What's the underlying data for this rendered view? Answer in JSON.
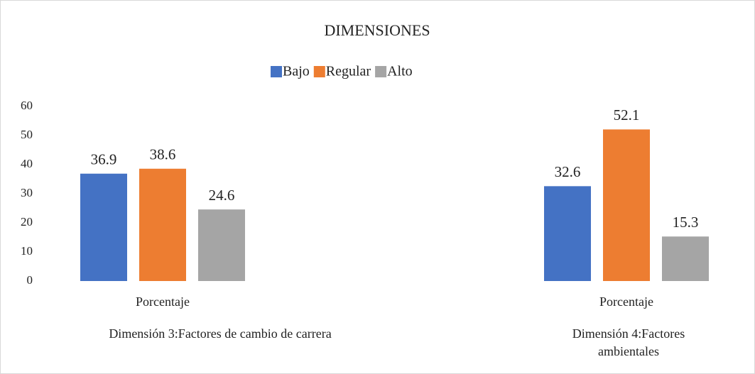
{
  "chart_data": {
    "type": "bar",
    "title": "DIMENSIONES",
    "categories": [
      "Porcentaje",
      "Porcentaje"
    ],
    "groups": [
      "Dimensión 3:Factores de cambio de carrera",
      "Dimensión 4:Factores ambientales"
    ],
    "series": [
      {
        "name": "Bajo",
        "color": "#4472c4",
        "values": [
          36.9,
          32.6
        ]
      },
      {
        "name": "Regular",
        "color": "#ed7d31",
        "values": [
          38.6,
          52.1
        ]
      },
      {
        "name": "Alto",
        "color": "#a5a5a5",
        "values": [
          24.6,
          15.3
        ]
      }
    ],
    "ylim": [
      0,
      60
    ],
    "yticks": [
      0,
      10,
      20,
      30,
      40,
      50,
      60
    ],
    "grid": false,
    "legend": "top"
  }
}
